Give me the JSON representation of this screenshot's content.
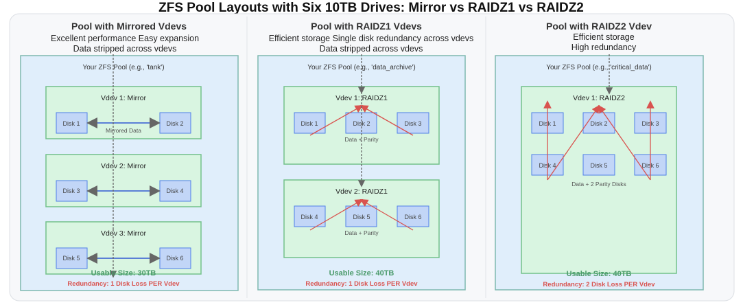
{
  "title": "ZFS Pool Layouts with Six 10TB Drives: Mirror vs RAIDZ1 vs RAIDZ2",
  "colors": {
    "pool_bg": "#e0eefb",
    "vdev_bg": "#d9f5e1",
    "disk_bg": "#c2d6f7",
    "usable": "#4a9a6a",
    "redundancy": "#d9534f",
    "parity_lines": "#d9534f"
  },
  "panels": [
    {
      "title": "Pool with Mirrored Vdevs",
      "subtitle_lines": [
        "Excellent performance Easy expansion",
        "Data stripped across vdevs"
      ],
      "pool_label": "Your ZFS Pool (e.g., 'tank')",
      "vdevs": [
        {
          "label": "Vdev 1: Mirror",
          "disks": [
            "Disk 1",
            "Disk 2"
          ],
          "note": "Mirrored Data"
        },
        {
          "label": "Vdev 2: Mirror",
          "disks": [
            "Disk 3",
            "Disk 4"
          ]
        },
        {
          "label": "Vdev 3: Mirror",
          "disks": [
            "Disk 5",
            "Disk 6"
          ]
        }
      ],
      "usable": "Usable Size: 30TB",
      "redundancy": "Redundancy: 1 Disk Loss PER Vdev"
    },
    {
      "title": "Pool with RAIDZ1 Vdevs",
      "subtitle_lines": [
        "Efficient storage  Single disk redundancy across vdevs",
        "Data stripped across vdevs"
      ],
      "pool_label": "Your ZFS Pool (e.g., 'data_archive')",
      "vdevs": [
        {
          "label": "Vdev 1: RAIDZ1",
          "disks": [
            "Disk 1",
            "Disk 2",
            "Disk 3"
          ],
          "note": "Data + Parity"
        },
        {
          "label": "Vdev 2: RAIDZ1",
          "disks": [
            "Disk 4",
            "Disk 5",
            "Disk 6"
          ],
          "note": "Data + Parity"
        }
      ],
      "usable": "Usable Size: 40TB",
      "redundancy": "Redundancy: 1 Disk Loss PER Vdev"
    },
    {
      "title": "Pool with RAIDZ2 Vdev",
      "subtitle_lines": [
        "Efficient storage",
        "High redundancy"
      ],
      "pool_label": "Your ZFS Pool (e.g., 'critical_data')",
      "vdevs": [
        {
          "label": "Vdev 1: RAIDZ2",
          "disks": [
            "Disk 1",
            "Disk 2",
            "Disk 3",
            "Disk 4",
            "Disk 5",
            "Disk 6"
          ],
          "note": "Data + 2 Parity Disks"
        }
      ],
      "usable": "Usable Size: 40TB",
      "redundancy": "Redundancy: 2 Disk Loss PER Vdev"
    }
  ]
}
